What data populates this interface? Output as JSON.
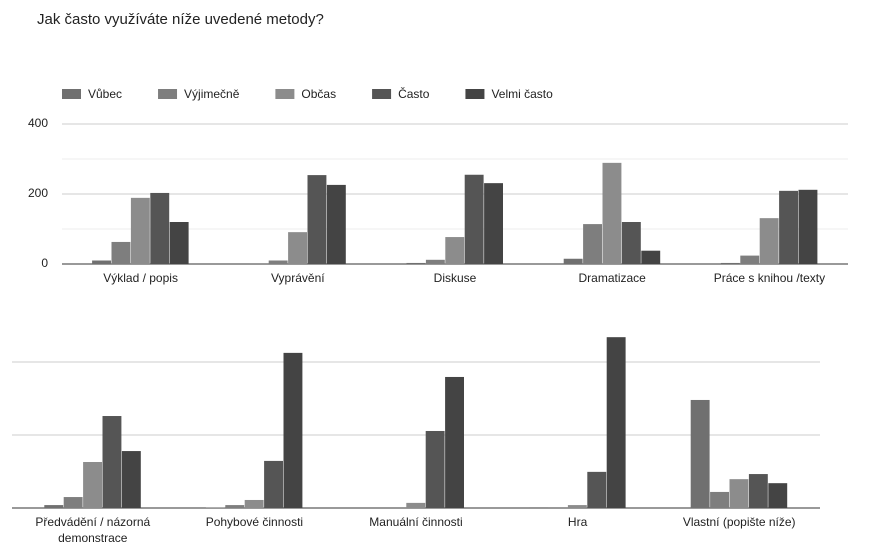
{
  "chart_data": [
    {
      "type": "bar",
      "title": "Jak často využíváte níže uvedené metody?",
      "categories": [
        "Výklad / popis",
        "Vyprávění",
        "Diskuse",
        "Dramatizace",
        "Práce s knihou /texty"
      ],
      "series": [
        {
          "name": "Vůbec",
          "color": "#707070",
          "values": [
            10,
            2,
            3,
            15,
            3
          ]
        },
        {
          "name": "Výjimečně",
          "color": "#7e7e7e",
          "values": [
            63,
            10,
            12,
            114,
            24
          ]
        },
        {
          "name": "Občas",
          "color": "#8c8c8c",
          "values": [
            189,
            91,
            77,
            289,
            131
          ]
        },
        {
          "name": "Často",
          "color": "#555555",
          "values": [
            203,
            254,
            255,
            120,
            209
          ]
        },
        {
          "name": "Velmi často",
          "color": "#444444",
          "values": [
            120,
            226,
            231,
            38,
            212
          ]
        }
      ],
      "ylim": [
        0,
        400
      ],
      "yticks": [
        0,
        200,
        400
      ],
      "minor_yticks": [
        100,
        300
      ],
      "grid": true,
      "legend": "top"
    },
    {
      "type": "bar",
      "categories": [
        "Předvádění / názorná demonstrace",
        "Pohybové činnosti",
        "Manuální činnosti",
        "Hra",
        "Vlastní (popište níže)"
      ],
      "series": [
        {
          "color": "#707070",
          "values": [
            8,
            1,
            0,
            2,
            296
          ]
        },
        {
          "color": "#7e7e7e",
          "values": [
            30,
            8,
            0,
            0,
            44
          ]
        },
        {
          "color": "#8c8c8c",
          "values": [
            126,
            22,
            14,
            8,
            79
          ]
        },
        {
          "color": "#555555",
          "values": [
            252,
            129,
            211,
            99,
            93
          ]
        },
        {
          "color": "#444444",
          "values": [
            156,
            425,
            359,
            468,
            68
          ]
        }
      ],
      "ylim": [
        0,
        400
      ],
      "yticks": [
        0,
        200,
        400
      ],
      "tick_labels": false,
      "grid": true
    }
  ]
}
